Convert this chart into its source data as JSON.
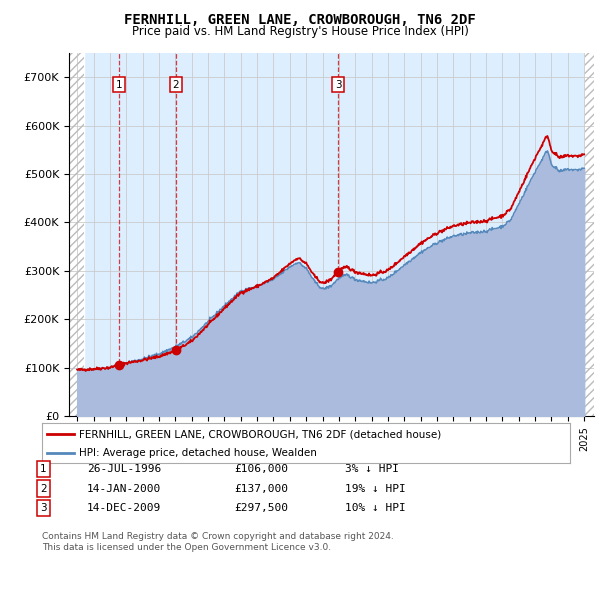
{
  "title": "FERNHILL, GREEN LANE, CROWBOROUGH, TN6 2DF",
  "subtitle": "Price paid vs. HM Land Registry's House Price Index (HPI)",
  "ylim": [
    0,
    750000
  ],
  "yticks": [
    0,
    100000,
    200000,
    300000,
    400000,
    500000,
    600000,
    700000
  ],
  "ytick_labels": [
    "£0",
    "£100K",
    "£200K",
    "£300K",
    "£400K",
    "£500K",
    "£600K",
    "£700K"
  ],
  "legend_line1": "FERNHILL, GREEN LANE, CROWBOROUGH, TN6 2DF (detached house)",
  "legend_line2": "HPI: Average price, detached house, Wealden",
  "line_color_red": "#cc0000",
  "line_color_blue": "#5588bb",
  "fill_color_blue": "#aabbdd",
  "sale_dates": [
    1996.57,
    2000.04,
    2009.96
  ],
  "sale_prices": [
    106000,
    137000,
    297500
  ],
  "sale_labels": [
    "1",
    "2",
    "3"
  ],
  "table_rows": [
    [
      "1",
      "26-JUL-1996",
      "£106,000",
      "3% ↓ HPI"
    ],
    [
      "2",
      "14-JAN-2000",
      "£137,000",
      "19% ↓ HPI"
    ],
    [
      "3",
      "14-DEC-2009",
      "£297,500",
      "10% ↓ HPI"
    ]
  ],
  "footer": "Contains HM Land Registry data © Crown copyright and database right 2024.\nThis data is licensed under the Open Government Licence v3.0.",
  "hatch_color": "#aaaaaa",
  "bg_color": "#ddeeff",
  "grid_color": "#cccccc"
}
